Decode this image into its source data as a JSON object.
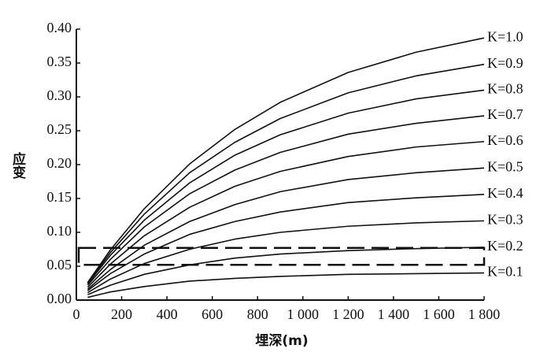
{
  "chart_data": {
    "type": "line",
    "xlabel": "埋深(m)",
    "ylabel": "应变",
    "x": [
      50,
      150,
      300,
      500,
      700,
      900,
      1200,
      1500,
      1800
    ],
    "series": [
      {
        "name": "K=1.0",
        "color": "#111111",
        "values": [
          0.026,
          0.074,
          0.135,
          0.201,
          0.252,
          0.292,
          0.336,
          0.366,
          0.387
        ]
      },
      {
        "name": "K=0.9",
        "color": "#111111",
        "values": [
          0.025,
          0.07,
          0.127,
          0.188,
          0.233,
          0.268,
          0.306,
          0.331,
          0.348
        ]
      },
      {
        "name": "K=0.8",
        "color": "#111111",
        "values": [
          0.024,
          0.066,
          0.118,
          0.173,
          0.214,
          0.244,
          0.276,
          0.297,
          0.31
        ]
      },
      {
        "name": "K=0.7",
        "color": "#111111",
        "values": [
          0.022,
          0.06,
          0.108,
          0.157,
          0.192,
          0.218,
          0.245,
          0.261,
          0.272
        ]
      },
      {
        "name": "K=0.6",
        "color": "#111111",
        "values": [
          0.019,
          0.053,
          0.095,
          0.137,
          0.168,
          0.19,
          0.212,
          0.226,
          0.234
        ]
      },
      {
        "name": "K=0.5",
        "color": "#111111",
        "values": [
          0.016,
          0.045,
          0.081,
          0.116,
          0.141,
          0.16,
          0.178,
          0.188,
          0.195
        ]
      },
      {
        "name": "K=0.4",
        "color": "#111111",
        "values": [
          0.014,
          0.039,
          0.068,
          0.097,
          0.116,
          0.13,
          0.144,
          0.151,
          0.156
        ]
      },
      {
        "name": "K=0.3",
        "color": "#111111",
        "values": [
          0.011,
          0.031,
          0.054,
          0.075,
          0.09,
          0.1,
          0.109,
          0.114,
          0.117
        ]
      },
      {
        "name": "K=0.2",
        "color": "#111111",
        "values": [
          0.008,
          0.022,
          0.038,
          0.052,
          0.062,
          0.068,
          0.073,
          0.076,
          0.078
        ]
      },
      {
        "name": "K=0.1",
        "color": "#111111",
        "values": [
          0.004,
          0.012,
          0.02,
          0.028,
          0.032,
          0.035,
          0.038,
          0.039,
          0.04
        ]
      }
    ],
    "highlight_range": [
      0.052,
      0.077
    ],
    "xlim": [
      0,
      1800
    ],
    "xticks": [
      0,
      200,
      400,
      600,
      800,
      {
        "value": 1000,
        "label": "1 000"
      },
      {
        "value": 1200,
        "label": "1 200"
      },
      {
        "value": 1400,
        "label": "1 400"
      },
      {
        "value": 1600,
        "label": "1 600"
      },
      {
        "value": 1800,
        "label": "1 800"
      }
    ],
    "ylim": [
      0,
      0.4
    ],
    "yticks": [
      {
        "value": 0,
        "label": "0.00"
      },
      0.05,
      {
        "value": 0.1,
        "label": "0.10"
      },
      0.15,
      {
        "value": 0.2,
        "label": "0.20"
      },
      0.25,
      {
        "value": 0.3,
        "label": "0.30"
      },
      0.35,
      {
        "value": 0.4,
        "label": "0.40"
      }
    ],
    "grid": false
  }
}
